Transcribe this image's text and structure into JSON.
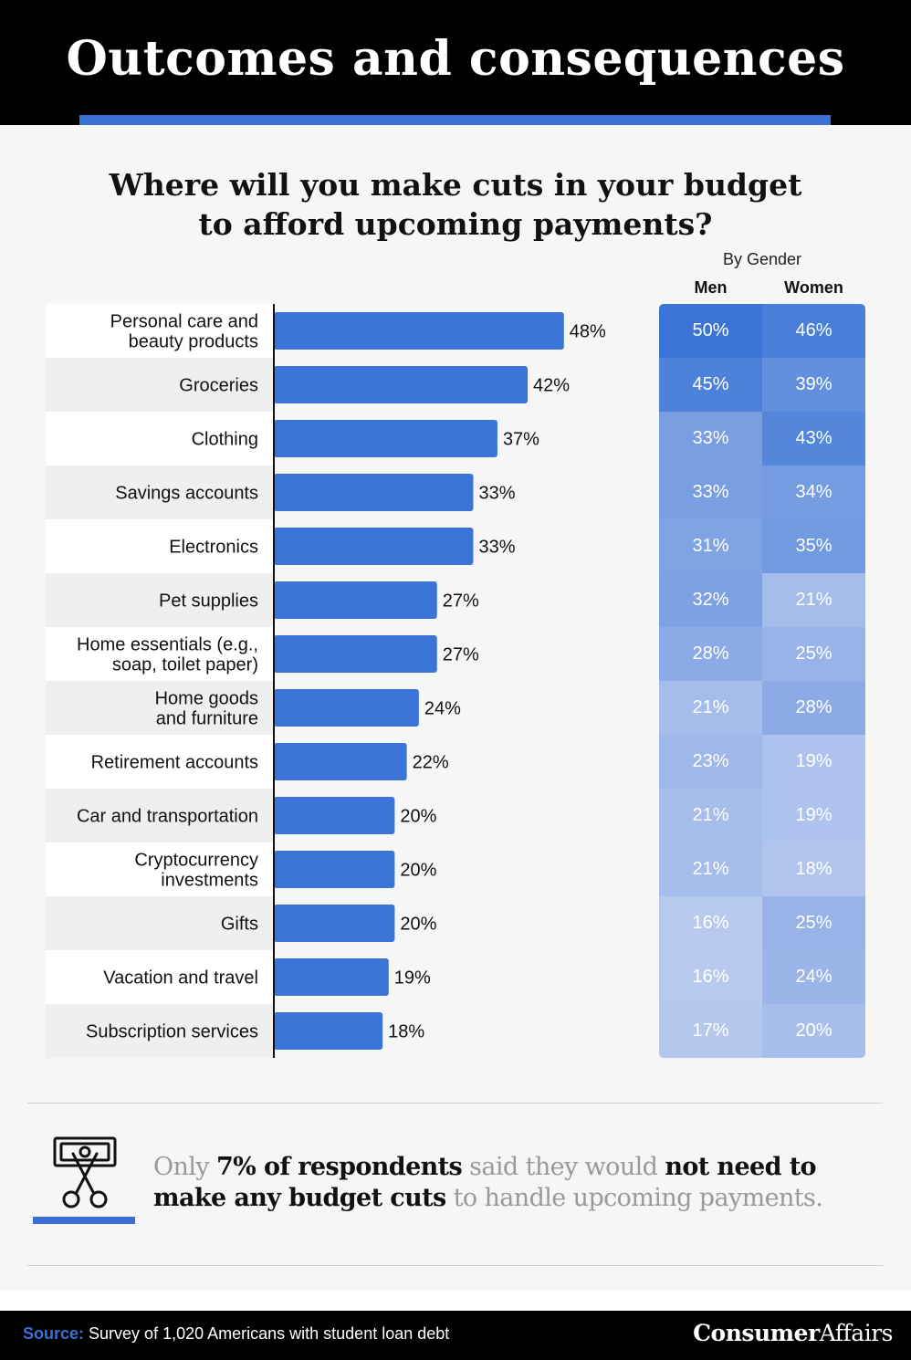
{
  "header": {
    "title": "Outcomes and consequences"
  },
  "question": {
    "line1": "Where will you make cuts in your budget",
    "line2": "to afford upcoming payments?"
  },
  "by_gender": {
    "label": "By Gender",
    "men": "Men",
    "women": "Women"
  },
  "colors": {
    "bar": "#3a74d6",
    "accent": "#3a6fd6",
    "heat_dark": "#3a74d6",
    "heat_light": "#b8c9ee"
  },
  "chart_data": {
    "type": "bar",
    "orientation": "horizontal",
    "categories": [
      [
        "Personal care and",
        "beauty products"
      ],
      [
        "Groceries"
      ],
      [
        "Clothing"
      ],
      [
        "Savings accounts"
      ],
      [
        "Electronics"
      ],
      [
        "Pet supplies"
      ],
      [
        "Home essentials (e.g.,",
        "soap, toilet paper)"
      ],
      [
        "Home goods",
        "and furniture"
      ],
      [
        "Retirement accounts"
      ],
      [
        "Car and transportation"
      ],
      [
        "Cryptocurrency",
        "investments"
      ],
      [
        "Gifts"
      ],
      [
        "Vacation and travel"
      ],
      [
        "Subscription services"
      ]
    ],
    "values": [
      48,
      42,
      37,
      33,
      33,
      27,
      27,
      24,
      22,
      20,
      20,
      20,
      19,
      18
    ],
    "unit": "%",
    "heatmap": {
      "type": "heatmap",
      "columns": [
        "Men",
        "Women"
      ],
      "men": [
        50,
        45,
        33,
        33,
        31,
        32,
        28,
        21,
        23,
        21,
        21,
        16,
        16,
        17
      ],
      "women": [
        46,
        39,
        43,
        34,
        35,
        21,
        25,
        28,
        19,
        19,
        18,
        25,
        24,
        20
      ]
    }
  },
  "note": {
    "p1": "Only ",
    "b1": "7% of respondents",
    "p2": " said they would ",
    "b2": "not need to make any budget cuts",
    "p3": " to handle upcoming payments."
  },
  "icon": "scissors-cutting-money-icon",
  "footer": {
    "source_label": "Source:",
    "source_text": " Survey of 1,020 Americans with student loan debt",
    "brand_strong": "Consumer",
    "brand_rest": "Affairs"
  }
}
